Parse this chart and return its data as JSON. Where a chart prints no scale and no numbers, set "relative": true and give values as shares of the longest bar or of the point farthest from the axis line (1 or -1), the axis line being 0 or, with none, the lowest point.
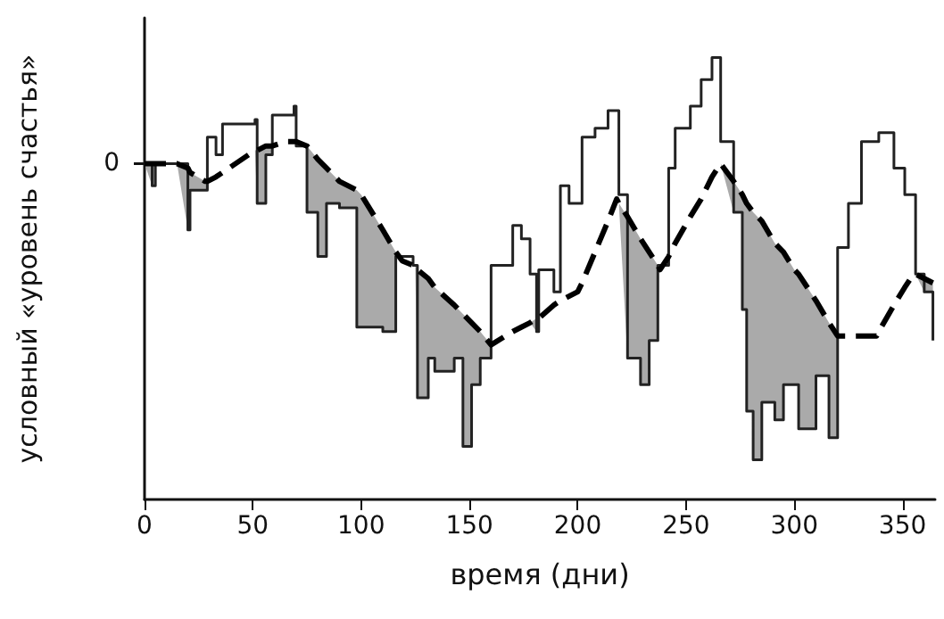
{
  "chart_data": {
    "type": "line",
    "xlabel": "время (дни)",
    "ylabel": "условный «уровень счастья»",
    "relative": true,
    "xlim": [
      0,
      365
    ],
    "xticks": [
      0,
      50,
      100,
      150,
      200,
      250,
      300,
      350
    ],
    "grid": false,
    "marker": "none",
    "annotations": [
      "0"
    ],
    "series": [
      {
        "type": "step",
        "color": "#222222",
        "line_style": "solid",
        "x": [
          0,
          3.5,
          5,
          20,
          21,
          29,
          33,
          36,
          51,
          52,
          56,
          59,
          69,
          70,
          75,
          80,
          84,
          90,
          98,
          110,
          116,
          124,
          126,
          131,
          134,
          143,
          147,
          151,
          155,
          160,
          170,
          174,
          178,
          181,
          182,
          189,
          192,
          196,
          202,
          208,
          214,
          219,
          223,
          229,
          233,
          237,
          242,
          245,
          252,
          257,
          262,
          266,
          272,
          276,
          278,
          281,
          285,
          291,
          295,
          302,
          310,
          316,
          320,
          325,
          331,
          339,
          346,
          351,
          356,
          360,
          364
        ],
        "values": [
          0.76,
          0.71,
          0.76,
          0.61,
          0.7,
          0.82,
          0.78,
          0.85,
          0.86,
          0.67,
          0.78,
          0.87,
          0.89,
          0.8,
          0.65,
          0.55,
          0.67,
          0.66,
          0.39,
          0.38,
          0.55,
          0.53,
          0.23,
          0.32,
          0.29,
          0.32,
          0.12,
          0.26,
          0.32,
          0.53,
          0.62,
          0.59,
          0.51,
          0.38,
          0.52,
          0.47,
          0.71,
          0.67,
          0.82,
          0.84,
          0.88,
          0.69,
          0.32,
          0.26,
          0.36,
          0.53,
          0.75,
          0.84,
          0.89,
          0.95,
          1.0,
          0.81,
          0.65,
          0.43,
          0.2,
          0.09,
          0.22,
          0.18,
          0.26,
          0.16,
          0.28,
          0.14,
          0.57,
          0.67,
          0.81,
          0.83,
          0.75,
          0.69,
          0.51,
          0.47,
          0.36
        ]
      },
      {
        "color": "#000000",
        "line_style": "dashed",
        "x": [
          0,
          3.5,
          5,
          15,
          20,
          21,
          28,
          29,
          33,
          36,
          51,
          52,
          56,
          59,
          65,
          69,
          70,
          75,
          80,
          84,
          90,
          98,
          100,
          110,
          116,
          119,
          124,
          125,
          126,
          131,
          134,
          143,
          147,
          151,
          155,
          160,
          170,
          174,
          178,
          181,
          182,
          189,
          192,
          196,
          200,
          202,
          208,
          214,
          218,
          219,
          223,
          229,
          233,
          237,
          238,
          242,
          245,
          252,
          257,
          262,
          266,
          272,
          276,
          278,
          281,
          285,
          291,
          295,
          300,
          302,
          310,
          316,
          320,
          325,
          331,
          338,
          339,
          346,
          351,
          355,
          356,
          360,
          364
        ],
        "values": [
          0.76,
          0.76,
          0.76,
          0.76,
          0.75,
          0.74,
          0.72,
          0.72,
          0.73,
          0.74,
          0.79,
          0.79,
          0.8,
          0.8,
          0.81,
          0.81,
          0.81,
          0.8,
          0.77,
          0.75,
          0.72,
          0.7,
          0.69,
          0.61,
          0.56,
          0.54,
          0.53,
          0.53,
          0.52,
          0.5,
          0.48,
          0.44,
          0.42,
          0.4,
          0.38,
          0.35,
          0.38,
          0.39,
          0.4,
          0.41,
          0.41,
          0.44,
          0.45,
          0.46,
          0.47,
          0.49,
          0.56,
          0.63,
          0.68,
          0.67,
          0.64,
          0.59,
          0.56,
          0.53,
          0.52,
          0.55,
          0.58,
          0.64,
          0.68,
          0.73,
          0.76,
          0.72,
          0.69,
          0.67,
          0.65,
          0.63,
          0.58,
          0.56,
          0.52,
          0.51,
          0.45,
          0.4,
          0.37,
          0.37,
          0.37,
          0.37,
          0.38,
          0.44,
          0.48,
          0.51,
          0.51,
          0.5,
          0.49
        ],
        "upper": [
          0.76,
          0.76,
          0.76,
          0.76,
          0.75,
          0.74,
          0.72,
          0.72,
          0.73,
          0.74,
          0.79,
          0.79,
          0.8,
          0.8,
          0.81,
          0.81,
          0.81,
          0.8,
          0.77,
          0.75,
          0.72,
          0.7,
          0.69,
          0.61,
          0.56,
          0.54,
          0.53,
          0.53,
          0.52,
          0.5,
          0.48,
          0.44,
          0.42,
          0.4,
          0.38,
          0.35,
          0.38,
          0.39,
          0.4,
          0.41,
          0.41,
          0.44,
          0.45,
          0.46,
          0.47,
          0.49,
          0.56,
          0.63,
          0.68,
          0.67,
          0.64,
          0.59,
          0.56,
          0.53,
          0.52,
          0.55,
          0.58,
          0.64,
          0.68,
          0.73,
          0.76,
          0.72,
          0.69,
          0.67,
          0.65,
          0.63,
          0.58,
          0.56,
          0.52,
          0.51,
          0.45,
          0.4,
          0.37,
          0.37,
          0.37,
          0.37,
          0.38,
          0.44,
          0.48,
          0.51,
          0.51,
          0.5,
          0.49
        ],
        "lower": [
          0.76,
          0.71,
          0.76,
          0.76,
          0.61,
          0.7,
          0.7,
          0.72,
          0.73,
          0.74,
          0.79,
          0.67,
          0.78,
          0.8,
          0.81,
          0.81,
          0.8,
          0.65,
          0.55,
          0.67,
          0.66,
          0.39,
          0.39,
          0.38,
          0.55,
          0.54,
          0.53,
          0.53,
          0.23,
          0.32,
          0.29,
          0.32,
          0.12,
          0.26,
          0.32,
          0.35,
          0.38,
          0.39,
          0.4,
          0.38,
          0.41,
          0.44,
          0.45,
          0.46,
          0.47,
          0.49,
          0.56,
          0.63,
          0.68,
          0.67,
          0.32,
          0.26,
          0.36,
          0.53,
          0.52,
          0.55,
          0.58,
          0.64,
          0.68,
          0.73,
          0.76,
          0.65,
          0.43,
          0.2,
          0.09,
          0.22,
          0.18,
          0.26,
          0.26,
          0.16,
          0.28,
          0.14,
          0.37,
          0.37,
          0.37,
          0.37,
          0.38,
          0.44,
          0.48,
          0.51,
          0.51,
          0.47,
          0.36
        ]
      }
    ]
  }
}
